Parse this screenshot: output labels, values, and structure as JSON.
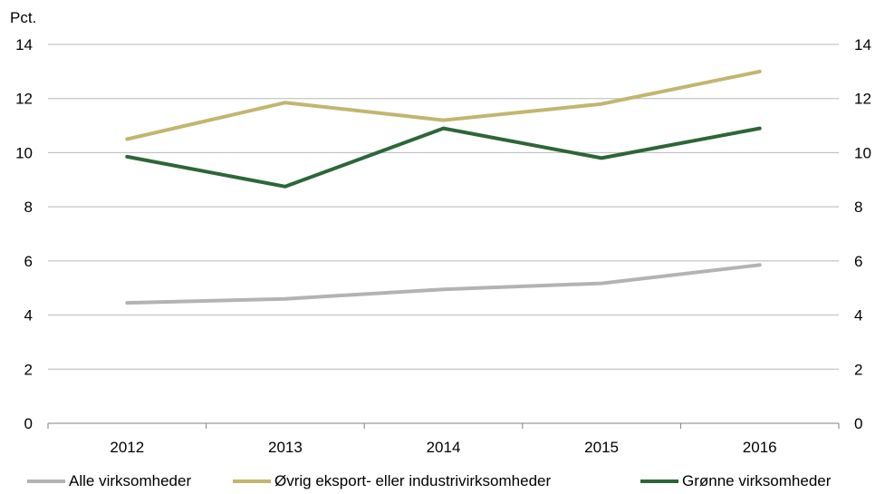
{
  "chart_data": {
    "type": "line",
    "title": "",
    "unit_label": "Pct.",
    "xlabel": "",
    "ylabel": "",
    "categories": [
      "2012",
      "2013",
      "2014",
      "2015",
      "2016"
    ],
    "ylim": [
      0,
      14
    ],
    "yticks": [
      0,
      2,
      4,
      6,
      8,
      10,
      12,
      14
    ],
    "ytick_labels": [
      "0",
      "2",
      "4",
      "6",
      "8",
      "10",
      "12",
      "14"
    ],
    "secondary_y": true,
    "grid": true,
    "legend_position": "bottom",
    "series": [
      {
        "name": "Alle virksomheder",
        "color": "#b3b3b3",
        "values": [
          4.45,
          4.6,
          4.95,
          5.17,
          5.85
        ]
      },
      {
        "name": "Øvrig eksport- eller industrivirksomheder",
        "color": "#c2b66f",
        "values": [
          10.5,
          11.85,
          11.2,
          11.8,
          13.0
        ]
      },
      {
        "name": "Grønne virksomheder",
        "color": "#2d6638",
        "values": [
          9.85,
          8.75,
          10.9,
          9.8,
          10.9
        ]
      }
    ]
  }
}
